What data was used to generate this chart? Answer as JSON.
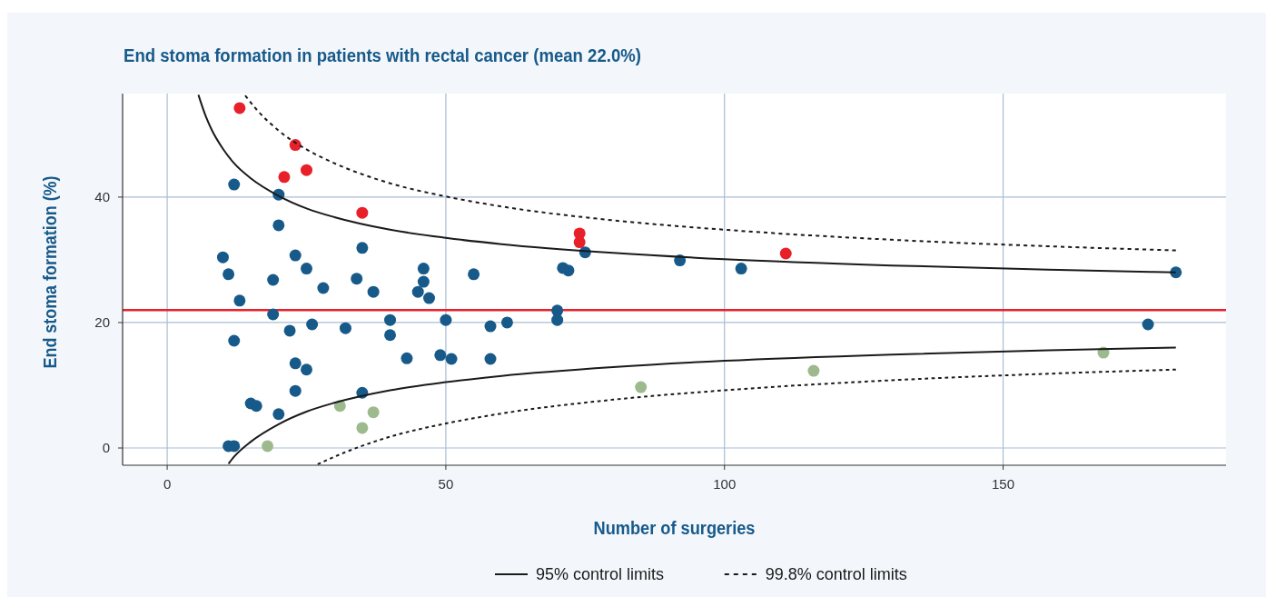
{
  "chart_data": {
    "type": "scatter",
    "title": "End stoma formation in patients with rectal cancer (mean 22.0%)",
    "xlabel": "Number of surgeries",
    "ylabel": "End stoma formation (%)",
    "xlim": [
      -8,
      190
    ],
    "ylim": [
      -2.75,
      56.5
    ],
    "xticks": [
      0,
      50,
      100,
      150
    ],
    "yticks": [
      0,
      20,
      40
    ],
    "grid": true,
    "legend": "bottom",
    "marker": "circle",
    "ref_lines": [
      {
        "axis": "y",
        "value": 22,
        "color": "#e8202a"
      }
    ],
    "series": [
      {
        "type": "scatter",
        "color": "#175a8a",
        "x": [
          10,
          11,
          12,
          13,
          12,
          11,
          12,
          15,
          16,
          20,
          20,
          19,
          23,
          25,
          28,
          19,
          22,
          26,
          23,
          25,
          23,
          20,
          35,
          34,
          35,
          32,
          37,
          40,
          40,
          43,
          45,
          46,
          46,
          47,
          49,
          50,
          51,
          55,
          58,
          58,
          61,
          70,
          70,
          71,
          72,
          75,
          92,
          103,
          176,
          181
        ],
        "values": [
          30.4,
          27.7,
          42.0,
          23.5,
          17.1,
          0.3,
          0.3,
          7.1,
          6.7,
          40.4,
          35.5,
          26.8,
          30.7,
          28.6,
          25.5,
          21.3,
          18.7,
          19.7,
          13.5,
          12.5,
          9.1,
          5.4,
          31.9,
          27.0,
          8.8,
          19.1,
          24.9,
          20.4,
          18.0,
          14.3,
          24.9,
          28.6,
          26.5,
          23.9,
          14.8,
          20.4,
          14.2,
          27.7,
          19.4,
          14.2,
          20.0,
          21.9,
          20.4,
          28.7,
          28.3,
          31.2,
          29.9,
          28.6,
          19.7,
          28.0
        ]
      },
      {
        "type": "scatter",
        "color": "#e8202a",
        "x": [
          13,
          23,
          21,
          25,
          35,
          74,
          74,
          111
        ],
        "values": [
          54.2,
          48.3,
          43.2,
          44.3,
          37.5,
          34.2,
          32.8,
          31.0
        ]
      },
      {
        "type": "scatter",
        "color": "#9dba8e",
        "x": [
          18,
          31,
          37,
          35,
          85,
          116,
          168
        ],
        "values": [
          0.3,
          6.7,
          5.7,
          3.2,
          9.7,
          12.3,
          15.2
        ]
      },
      {
        "type": "line",
        "name": "95% control limits",
        "color": "#1a1a1a",
        "line_style": "solid",
        "marker": "none",
        "x": [
          5.6,
          7,
          8,
          10,
          12,
          15,
          20,
          25,
          30,
          40,
          50,
          60,
          80,
          100,
          130,
          160,
          181
        ],
        "values": [
          56.3,
          52.7,
          50.7,
          47.7,
          45.4,
          43.0,
          40.2,
          38.2,
          36.8,
          34.8,
          33.5,
          32.5,
          31.1,
          30.1,
          29.1,
          28.4,
          28.0
        ]
      },
      {
        "type": "line",
        "color": "#1a1a1a",
        "line_style": "solid",
        "marker": "none",
        "x": [
          11,
          12,
          15,
          20,
          25,
          30,
          40,
          50,
          60,
          80,
          100,
          130,
          160,
          181
        ],
        "values": [
          -2.5,
          -1.4,
          1.0,
          3.8,
          5.8,
          7.2,
          9.2,
          10.5,
          11.5,
          12.9,
          13.9,
          14.9,
          15.6,
          16.0
        ]
      },
      {
        "type": "line",
        "name": "99.8% control limits",
        "color": "#1a1a1a",
        "line_style": "dashed",
        "marker": "none",
        "x": [
          14,
          16,
          20,
          25,
          30,
          40,
          50,
          60,
          80,
          100,
          130,
          160,
          181
        ],
        "values": [
          56.2,
          54.0,
          50.6,
          47.6,
          45.4,
          42.2,
          40.1,
          38.5,
          36.3,
          34.8,
          33.2,
          32.1,
          31.5
        ]
      },
      {
        "type": "line",
        "color": "#1a1a1a",
        "line_style": "dashed",
        "marker": "none",
        "x": [
          27,
          30,
          40,
          50,
          60,
          80,
          100,
          130,
          160,
          181
        ],
        "values": [
          -2.6,
          -1.4,
          1.8,
          3.9,
          5.5,
          7.7,
          9.2,
          10.8,
          11.9,
          12.5
        ]
      }
    ]
  }
}
